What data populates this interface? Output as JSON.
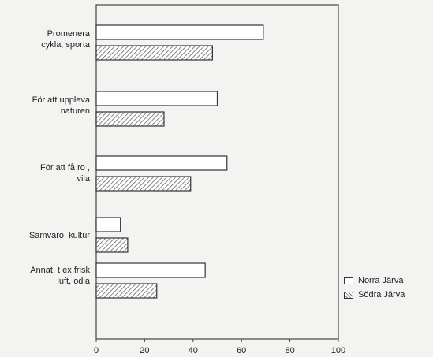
{
  "chart_data": {
    "type": "bar",
    "orientation": "horizontal",
    "categories": [
      [
        "Promenera",
        "cykla, sporta"
      ],
      [
        "För att uppleva",
        "naturen"
      ],
      [
        "För att få ro ,",
        "vila"
      ],
      [
        "Samvaro, kultur"
      ],
      [
        "Annat, t ex frisk",
        "luft, odla"
      ]
    ],
    "series": [
      {
        "name": "Norra Järva",
        "values": [
          69,
          50,
          54,
          10,
          45
        ],
        "fill": "#ffffff"
      },
      {
        "name": "Södra Järva",
        "values": [
          48,
          28,
          39,
          13,
          25
        ],
        "fill": "hatched"
      }
    ],
    "xlim": [
      0,
      100
    ],
    "xticks": [
      "0",
      "20",
      "40",
      "60",
      "80",
      "100"
    ],
    "grid": false,
    "legend_position": "right-bottom"
  }
}
